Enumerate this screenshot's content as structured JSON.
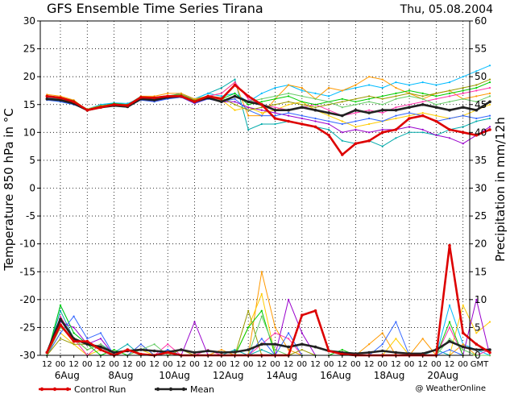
{
  "chart_data": {
    "type": "line",
    "title": "GFS Ensemble Time Series Tirana",
    "date_label": "Thu, 05.08.2004",
    "ylabel_left": "Temperature 850 hPa in °C",
    "ylabel_right": "Precipitation in mm/12h",
    "left_axis": {
      "min": -30,
      "max": 30,
      "ticks": [
        -30,
        -25,
        -20,
        -15,
        -10,
        -5,
        0,
        5,
        10,
        15,
        20,
        25,
        30
      ]
    },
    "right_axis": {
      "min": 0,
      "max": 60,
      "ticks": [
        0,
        5,
        10,
        15,
        20,
        25,
        30,
        35,
        40,
        45,
        50,
        55,
        60
      ]
    },
    "x_hours": [
      "12",
      "00",
      "12",
      "00",
      "12",
      "00",
      "12",
      "00",
      "12",
      "00",
      "12",
      "00",
      "12",
      "00",
      "12",
      "00",
      "12",
      "00",
      "12",
      "00",
      "12",
      "00",
      "12",
      "00",
      "12",
      "00",
      "12",
      "00",
      "12",
      "00",
      "12",
      "00"
    ],
    "x_end_label": "GMT",
    "x_dates": [
      "6Aug",
      "8Aug",
      "10Aug",
      "12Aug",
      "14Aug",
      "16Aug",
      "18Aug",
      "20Aug"
    ],
    "grid": true,
    "legend": [
      {
        "name": "Control Run",
        "color": "#dd0000"
      },
      {
        "name": "Mean",
        "color": "#222222"
      }
    ],
    "credit": "@ WeatherOnline",
    "series_temp": [
      {
        "name": "Control Run",
        "color": "#dd0000",
        "width": 2.6,
        "values": [
          16.5,
          16.2,
          15.5,
          14,
          14.5,
          15,
          14.8,
          16.3,
          16.2,
          16.5,
          16.5,
          15.5,
          16.5,
          16,
          18.5,
          16.5,
          15,
          12.5,
          12,
          11.5,
          11,
          9.5,
          6,
          8,
          8.5,
          10,
          10.5,
          12.5,
          13,
          12,
          10.5,
          10,
          9.5,
          10.5
        ]
      },
      {
        "name": "Mean",
        "color": "#222222",
        "width": 2.6,
        "values": [
          16,
          15.8,
          15.2,
          14,
          14.5,
          14.8,
          14.6,
          16,
          15.8,
          16.3,
          16.5,
          15.5,
          16.2,
          15.5,
          16.5,
          15.5,
          15,
          14,
          14,
          14.5,
          14,
          13.5,
          13,
          14,
          13.5,
          14,
          14,
          14.5,
          15,
          14.5,
          14,
          14.5,
          14,
          15.5
        ]
      },
      {
        "color": "#00aaaa",
        "width": 1,
        "values": [
          16,
          15.5,
          15,
          14,
          15,
          15.2,
          15,
          16.5,
          16,
          16.5,
          17,
          16,
          17,
          18,
          19.5,
          10.5,
          11.5,
          11.5,
          12,
          11.5,
          11,
          10.5,
          8.5,
          8,
          8.5,
          7.5,
          9,
          10,
          10,
          9.5,
          10.5,
          11,
          12,
          12.5
        ]
      },
      {
        "color": "#00bbff",
        "width": 1,
        "values": [
          16.3,
          16,
          15.5,
          14.2,
          15,
          15.3,
          15.2,
          16.2,
          16,
          16.5,
          16.8,
          16,
          17,
          16.5,
          17,
          15.5,
          17,
          18,
          18.5,
          17.5,
          17,
          16.5,
          17.5,
          18,
          18.5,
          18,
          19,
          18.5,
          19,
          18.5,
          19,
          20,
          21,
          22
        ]
      },
      {
        "color": "#ff9900",
        "width": 1,
        "values": [
          16.8,
          16.5,
          15.8,
          14,
          14.8,
          15,
          14.8,
          16.5,
          16.5,
          17,
          17,
          16,
          16.5,
          17,
          19,
          13,
          13,
          16,
          18.5,
          18,
          16,
          18,
          17.5,
          18.5,
          20,
          19.5,
          18,
          17,
          16,
          17,
          17.5,
          16,
          16.5,
          17
        ]
      },
      {
        "color": "#ffcc00",
        "width": 1,
        "values": [
          16.5,
          16,
          15.5,
          14.2,
          14.8,
          15,
          15,
          16,
          15.8,
          16.3,
          16.5,
          15.8,
          16.5,
          15.8,
          14,
          14.5,
          13.5,
          14,
          15,
          15.5,
          14,
          13,
          12,
          11,
          11.5,
          12,
          12.5,
          13,
          13.5,
          13,
          12.5,
          13,
          14,
          15
        ]
      },
      {
        "color": "#ff33aa",
        "width": 1,
        "values": [
          16.2,
          15.8,
          15.2,
          14,
          14.5,
          15,
          14.8,
          16,
          15.7,
          16.2,
          16.5,
          15.5,
          16.5,
          17,
          19,
          16,
          15,
          14.5,
          14,
          14.5,
          15,
          14,
          13,
          13.5,
          14,
          13.5,
          14.5,
          15,
          15.5,
          16,
          16.5,
          17,
          17.5,
          18
        ]
      },
      {
        "color": "#9900cc",
        "width": 1,
        "values": [
          16,
          15.7,
          15,
          14,
          14.6,
          15,
          14.7,
          15.9,
          15.6,
          16.1,
          16.3,
          15.2,
          16,
          15.5,
          15.5,
          14.5,
          14,
          13.5,
          13,
          12.5,
          12,
          11.5,
          10,
          10.5,
          10,
          10.5,
          10.5,
          11,
          10.5,
          9.5,
          9,
          8,
          9.5,
          11
        ]
      },
      {
        "color": "#00cc00",
        "width": 1,
        "values": [
          16.4,
          16.1,
          15.6,
          14.1,
          14.7,
          15.2,
          15,
          16.3,
          16.1,
          16.4,
          16.6,
          15.7,
          16.4,
          16,
          17,
          15,
          15.5,
          16,
          16.5,
          15.5,
          15,
          15.5,
          16,
          15.5,
          16,
          16.5,
          17,
          17.5,
          17,
          16.5,
          17,
          17.5,
          18,
          19
        ]
      },
      {
        "color": "#3366ff",
        "width": 1,
        "values": [
          15.8,
          15.5,
          15,
          14,
          14.4,
          14.8,
          14.6,
          15.8,
          15.5,
          16,
          16.3,
          15.3,
          16,
          15.5,
          16,
          14,
          13,
          13,
          13.5,
          13,
          12.5,
          12,
          11.5,
          12,
          12.5,
          12,
          13,
          13.5,
          13,
          12,
          12.5,
          13,
          12.5,
          13
        ]
      },
      {
        "color": "#999900",
        "width": 1,
        "values": [
          16.6,
          16.3,
          15.7,
          14.1,
          14.8,
          15.1,
          15,
          16.4,
          16.3,
          16.6,
          16.8,
          15.8,
          16.6,
          16.2,
          15,
          14,
          14.5,
          15,
          15.5,
          15,
          14.5,
          15,
          15.5,
          16,
          16.5,
          16,
          16.5,
          17,
          16.5,
          17,
          17.5,
          18,
          18.5,
          19.5
        ]
      },
      {
        "color": "#66cc66",
        "width": 1,
        "values": [
          16.1,
          15.9,
          15.3,
          14,
          14.6,
          15,
          14.8,
          16.1,
          15.9,
          16.3,
          16.4,
          15.4,
          16.1,
          15.7,
          16.5,
          15.5,
          16,
          16.5,
          17,
          16.5,
          16,
          15.5,
          14.5,
          15,
          15.5,
          15,
          16,
          16.5,
          16,
          15,
          15.5,
          16,
          15.5,
          16.5
        ]
      }
    ],
    "series_precip": [
      {
        "name": "Control Run",
        "color": "#dd0000",
        "width": 2.6,
        "values": [
          0.5,
          5.5,
          2.5,
          2.5,
          1,
          0,
          1,
          0.2,
          0,
          0.5,
          0,
          0,
          0,
          0,
          0,
          0,
          0,
          0,
          0,
          7.2,
          8,
          0.8,
          0.2,
          0,
          0,
          0,
          0,
          0,
          0,
          0,
          19.7,
          4,
          2,
          0.5
        ]
      },
      {
        "name": "Mean",
        "color": "#222222",
        "width": 2.6,
        "values": [
          0.5,
          6.5,
          3,
          2,
          1.5,
          0.5,
          0.8,
          1,
          0.8,
          0.6,
          1,
          0.5,
          0.8,
          0.5,
          0.6,
          1,
          2,
          2,
          1.5,
          2,
          1.5,
          0.8,
          0.5,
          0.3,
          0.5,
          0.8,
          0.5,
          0.3,
          0.3,
          1,
          2.5,
          1.5,
          1,
          1
        ]
      },
      {
        "color": "#00aaaa",
        "width": 1,
        "values": [
          0,
          8,
          3,
          1,
          2,
          0.5,
          2,
          0,
          0,
          1,
          0,
          0,
          0,
          0,
          1,
          0,
          1,
          0,
          0,
          0,
          0,
          0,
          0,
          0,
          0,
          0,
          0,
          0,
          0,
          1,
          0,
          0,
          0,
          0
        ]
      },
      {
        "color": "#00bbff",
        "width": 1,
        "values": [
          0,
          9,
          4,
          2,
          1,
          0,
          0,
          0,
          0,
          0,
          0,
          0,
          0,
          0,
          0,
          0,
          0,
          0,
          0,
          0,
          0,
          0,
          0,
          0,
          0,
          0,
          0,
          0,
          0,
          0,
          9,
          2,
          1,
          0
        ]
      },
      {
        "color": "#ff9900",
        "width": 1,
        "values": [
          0,
          5,
          3,
          1,
          2,
          0,
          0,
          2,
          0,
          0,
          0,
          0,
          0,
          1,
          0,
          0,
          15,
          5,
          1,
          0,
          0,
          0,
          0,
          0,
          2,
          4,
          0,
          0,
          3,
          0,
          0,
          2,
          0,
          0
        ]
      },
      {
        "color": "#ffcc00",
        "width": 1,
        "values": [
          0,
          4,
          2,
          0,
          1,
          0,
          0,
          1,
          0,
          0,
          0,
          0,
          0,
          0,
          0,
          5,
          11,
          0,
          0,
          0,
          0,
          0,
          0,
          0,
          0,
          0,
          3,
          0,
          0,
          0,
          0,
          9,
          4,
          6
        ]
      },
      {
        "color": "#ff33aa",
        "width": 1,
        "values": [
          0,
          7,
          3,
          0,
          2,
          0,
          0,
          0,
          0,
          2,
          0,
          0,
          1,
          0,
          0,
          0,
          2,
          4,
          3,
          0,
          0,
          0,
          0,
          0,
          0,
          0,
          0,
          0,
          0,
          0,
          5,
          0,
          0,
          1
        ]
      },
      {
        "color": "#9900cc",
        "width": 1,
        "values": [
          0,
          6,
          5,
          2,
          3,
          0,
          0,
          0,
          0,
          0,
          0,
          6,
          0,
          0,
          0,
          0,
          0,
          0,
          10,
          4,
          0,
          0,
          0,
          0,
          0,
          0,
          0,
          0,
          0,
          0,
          0,
          0,
          10,
          0
        ]
      },
      {
        "color": "#00cc00",
        "width": 1,
        "values": [
          0,
          9,
          4,
          2,
          0,
          1,
          0,
          0,
          0,
          0,
          0,
          0,
          0,
          0,
          0,
          5,
          8,
          0,
          0,
          0,
          0,
          0,
          1,
          0,
          0,
          0,
          0,
          0,
          0,
          0,
          6,
          0,
          0,
          0
        ]
      },
      {
        "color": "#3366ff",
        "width": 1,
        "values": [
          0,
          4,
          7,
          3,
          4,
          0,
          0,
          2,
          0,
          1,
          0,
          0,
          0,
          0,
          0,
          0,
          3,
          0,
          4,
          0,
          0,
          0,
          0,
          0,
          0,
          2,
          6,
          0,
          0,
          0,
          1,
          0,
          0,
          0
        ]
      },
      {
        "color": "#999900",
        "width": 1,
        "values": [
          0,
          3,
          2,
          2,
          1,
          0,
          1,
          0,
          0,
          0,
          1,
          0,
          0,
          0,
          0,
          8,
          0,
          0,
          0,
          1,
          0,
          0,
          0,
          0,
          0,
          0,
          0,
          0,
          0,
          0,
          0,
          0,
          0,
          0
        ]
      },
      {
        "color": "#66cc66",
        "width": 1,
        "values": [
          0,
          5,
          3,
          1,
          2,
          0,
          0,
          1,
          2,
          0,
          0,
          0,
          0,
          0,
          0,
          0,
          7,
          1,
          0,
          0,
          0,
          0,
          0,
          0,
          0,
          0,
          0,
          0,
          0,
          0,
          3,
          1,
          0,
          0
        ]
      }
    ]
  }
}
